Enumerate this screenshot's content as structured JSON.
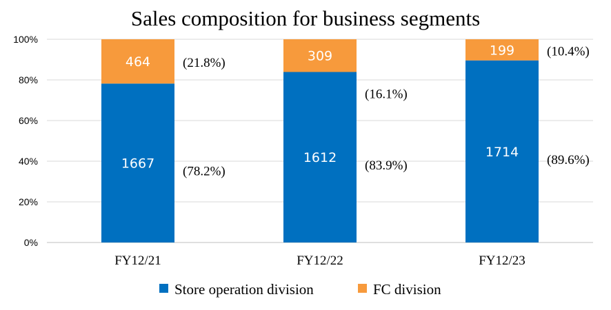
{
  "chart_data": {
    "type": "bar",
    "stacked": "percent",
    "title": "Sales composition for business segments",
    "categories": [
      "FY12/21",
      "FY12/22",
      "FY12/23"
    ],
    "ylim": [
      0,
      100
    ],
    "yticks": [
      "0%",
      "20%",
      "40%",
      "60%",
      "80%",
      "100%"
    ],
    "grid": true,
    "legend": "bottom",
    "series": [
      {
        "name": "Store operation division",
        "color": "#0070c0",
        "values": [
          1667,
          1612,
          1714
        ],
        "percent": [
          78.2,
          83.9,
          89.6
        ],
        "percent_labels": [
          "(78.2%)",
          "(83.9%)",
          "(89.6%)"
        ]
      },
      {
        "name": "FC division",
        "color": "#f79a3c",
        "values": [
          464,
          309,
          199
        ],
        "percent": [
          21.8,
          16.1,
          10.4
        ],
        "percent_labels": [
          "(21.8%)",
          "(16.1%)",
          "(10.4%)"
        ]
      }
    ]
  }
}
